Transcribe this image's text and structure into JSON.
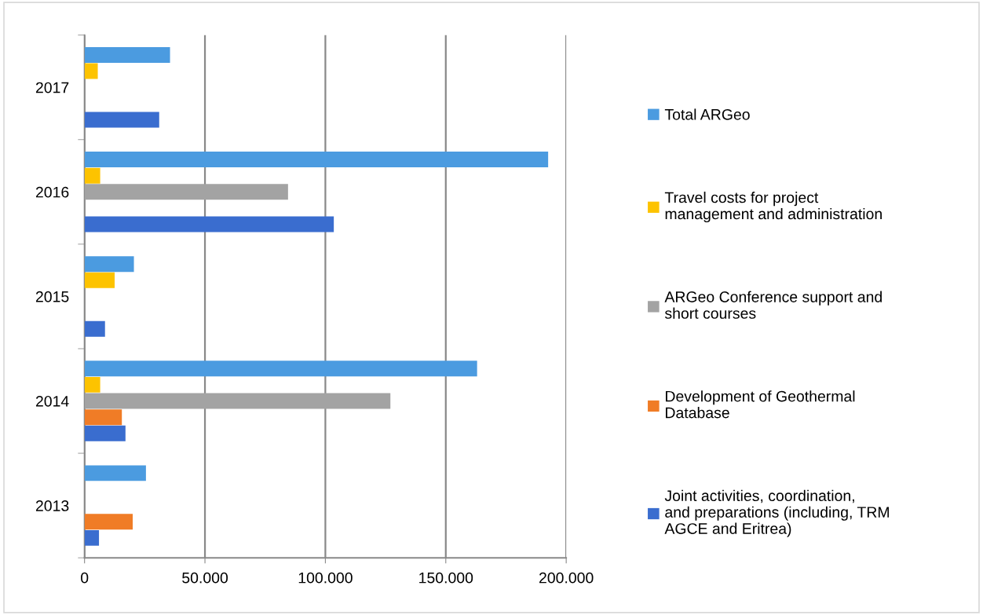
{
  "chart_data": {
    "type": "bar",
    "orientation": "horizontal",
    "categories": [
      "2017",
      "2016",
      "2015",
      "2014",
      "2013"
    ],
    "series": [
      {
        "name": "Joint activities, coordination, and preparations (including, TRM AGCE and Eritrea)",
        "color": "#3a6dcf",
        "values": [
          31000,
          103500,
          8500,
          17000,
          6000
        ]
      },
      {
        "name": "Development of Geothermal Database",
        "color": "#f07c26",
        "values": [
          null,
          null,
          null,
          15500,
          20000
        ]
      },
      {
        "name": "ARGeo Conference support and short courses",
        "color": "#a3a3a3",
        "values": [
          null,
          84500,
          null,
          127000,
          null
        ]
      },
      {
        "name": "Travel costs for project management and administration",
        "color": "#fdc300",
        "values": [
          5500,
          6500,
          12500,
          6500,
          null
        ]
      },
      {
        "name": "Total ARGeo",
        "color": "#4b9be0",
        "values": [
          35500,
          192500,
          20500,
          163000,
          25500
        ]
      }
    ],
    "xlim": [
      0,
      200000
    ],
    "xticks": [
      0,
      {
        "value": 50000,
        "label": "50.000"
      },
      {
        "value": 100000,
        "label": "100.000"
      },
      {
        "value": 150000,
        "label": "150.000"
      },
      {
        "value": 200000,
        "label": "200.000"
      }
    ],
    "grid": "x",
    "legend": "right"
  }
}
